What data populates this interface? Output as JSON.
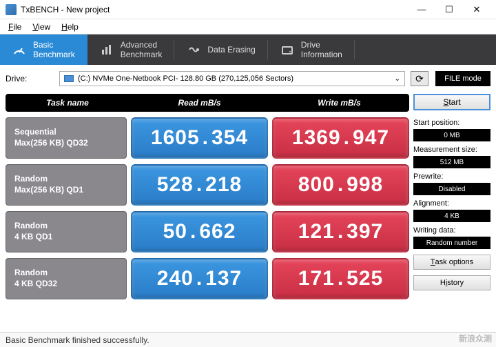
{
  "window": {
    "title": "TxBENCH - New project",
    "min": "—",
    "max": "☐",
    "close": "✕"
  },
  "menu": {
    "file": "File",
    "view": "View",
    "help": "Help"
  },
  "tabs": [
    {
      "label": "Basic\nBenchmark",
      "active": true,
      "icon": "gauge"
    },
    {
      "label": "Advanced\nBenchmark",
      "active": false,
      "icon": "bars"
    },
    {
      "label": "Data Erasing",
      "active": false,
      "icon": "erase"
    },
    {
      "label": "Drive\nInformation",
      "active": false,
      "icon": "drive"
    }
  ],
  "drive": {
    "label": "Drive:",
    "value": "(C:) NVMe One-Netbook PCI-  128.80 GB (270,125,056 Sectors)",
    "file_mode": "FILE mode"
  },
  "headers": {
    "task": "Task name",
    "read": "Read mB/s",
    "write": "Write mB/s"
  },
  "rows": [
    {
      "name1": "Sequential",
      "name2": "Max(256 KB) QD32",
      "read": "1605.354",
      "write": "1369.947"
    },
    {
      "name1": "Random",
      "name2": "Max(256 KB) QD1",
      "read": "528.218",
      "write": "800.998"
    },
    {
      "name1": "Random",
      "name2": "4 KB QD1",
      "read": "50.662",
      "write": "121.397"
    },
    {
      "name1": "Random",
      "name2": "4 KB QD32",
      "read": "240.137",
      "write": "171.525"
    }
  ],
  "side": {
    "start": "Start",
    "start_pos_label": "Start position:",
    "start_pos": "0 MB",
    "meas_label": "Measurement size:",
    "meas": "512 MB",
    "prewrite_label": "Prewrite:",
    "prewrite": "Disabled",
    "align_label": "Alignment:",
    "align": "4 KB",
    "wdata_label": "Writing data:",
    "wdata": "Random number",
    "task_options": "Task options",
    "history": "History"
  },
  "status": "Basic Benchmark finished successfully.",
  "watermark": "新浪众测",
  "colors": {
    "tab_bg": "#3a3a3c",
    "tab_active": "#2a8ad6",
    "read_bg": "#2a7cc8",
    "write_bg": "#c82e44",
    "task_bg": "#8a878d",
    "black": "#000000"
  }
}
